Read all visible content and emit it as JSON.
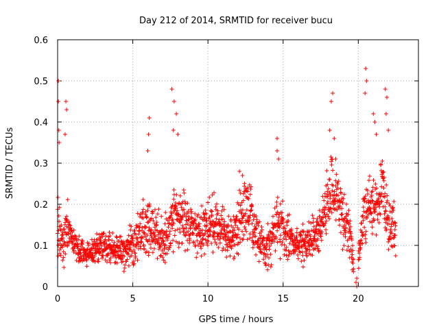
{
  "chart_data": {
    "type": "scatter",
    "title": "Day 212 of 2014, SRMTID for receiver bucu",
    "xlabel": "GPS time / hours",
    "ylabel": "SRMTID / TECUs",
    "xlim": [
      0,
      24
    ],
    "ylim": [
      0,
      0.6
    ],
    "xticks": [
      0,
      5,
      10,
      15,
      20
    ],
    "xtick_labels": [
      "0",
      "5",
      "10",
      "15",
      "20"
    ],
    "yticks": [
      0,
      0.1,
      0.2,
      0.3,
      0.4,
      0.5,
      0.6
    ],
    "ytick_labels": [
      "0",
      "0.1",
      "0.2",
      "0.3",
      "0.4",
      "0.5",
      "0.6"
    ],
    "grid": true,
    "marker": "+",
    "series": [
      {
        "name": "SRMTID",
        "color": "#ff0000",
        "envelope": {
          "x": [
            0,
            0.1,
            0.2,
            0.4,
            0.6,
            0.8,
            1.0,
            1.5,
            2.0,
            2.5,
            3.0,
            3.5,
            4.0,
            4.5,
            5.0,
            5.5,
            6.0,
            6.5,
            7.0,
            7.5,
            7.8,
            8.2,
            8.8,
            9.5,
            10.0,
            10.5,
            11.0,
            11.5,
            12.0,
            12.5,
            13.0,
            13.5,
            14.0,
            14.5,
            14.7,
            15.0,
            15.5,
            16.0,
            16.5,
            17.0,
            17.5,
            17.8,
            18.2,
            18.6,
            19.0,
            19.5,
            19.8,
            20.2,
            20.5,
            20.8,
            21.2,
            21.6,
            22.0,
            22.5
          ],
          "center": [
            0.18,
            0.15,
            0.12,
            0.1,
            0.15,
            0.14,
            0.11,
            0.08,
            0.08,
            0.09,
            0.1,
            0.1,
            0.09,
            0.08,
            0.11,
            0.13,
            0.15,
            0.13,
            0.11,
            0.14,
            0.18,
            0.16,
            0.15,
            0.13,
            0.15,
            0.16,
            0.14,
            0.12,
            0.14,
            0.2,
            0.15,
            0.1,
            0.1,
            0.14,
            0.16,
            0.13,
            0.11,
            0.1,
            0.11,
            0.12,
            0.14,
            0.16,
            0.25,
            0.22,
            0.16,
            0.12,
            0.0,
            0.13,
            0.18,
            0.2,
            0.2,
            0.24,
            0.15,
            0.13
          ],
          "spread": [
            0.1,
            0.06,
            0.04,
            0.04,
            0.05,
            0.04,
            0.03,
            0.03,
            0.02,
            0.03,
            0.03,
            0.03,
            0.03,
            0.03,
            0.04,
            0.05,
            0.06,
            0.05,
            0.05,
            0.05,
            0.07,
            0.06,
            0.05,
            0.05,
            0.05,
            0.05,
            0.05,
            0.04,
            0.05,
            0.06,
            0.06,
            0.04,
            0.05,
            0.05,
            0.05,
            0.05,
            0.04,
            0.03,
            0.04,
            0.04,
            0.05,
            0.06,
            0.08,
            0.06,
            0.06,
            0.04,
            0.005,
            0.05,
            0.07,
            0.06,
            0.06,
            0.07,
            0.05,
            0.04
          ]
        },
        "peaks": [
          {
            "x": 0.05,
            "y": 0.5
          },
          {
            "x": 0.05,
            "y": 0.45
          },
          {
            "x": 0.08,
            "y": 0.38
          },
          {
            "x": 0.1,
            "y": 0.35
          },
          {
            "x": 0.55,
            "y": 0.45
          },
          {
            "x": 0.6,
            "y": 0.43
          },
          {
            "x": 0.5,
            "y": 0.37
          },
          {
            "x": 6.1,
            "y": 0.41
          },
          {
            "x": 6.05,
            "y": 0.37
          },
          {
            "x": 6.0,
            "y": 0.33
          },
          {
            "x": 7.6,
            "y": 0.48
          },
          {
            "x": 7.75,
            "y": 0.45
          },
          {
            "x": 7.9,
            "y": 0.42
          },
          {
            "x": 7.7,
            "y": 0.38
          },
          {
            "x": 8.0,
            "y": 0.37
          },
          {
            "x": 12.1,
            "y": 0.28
          },
          {
            "x": 12.3,
            "y": 0.27
          },
          {
            "x": 14.6,
            "y": 0.36
          },
          {
            "x": 14.6,
            "y": 0.33
          },
          {
            "x": 14.7,
            "y": 0.31
          },
          {
            "x": 18.3,
            "y": 0.47
          },
          {
            "x": 18.2,
            "y": 0.45
          },
          {
            "x": 18.1,
            "y": 0.38
          },
          {
            "x": 18.4,
            "y": 0.36
          },
          {
            "x": 18.5,
            "y": 0.31
          },
          {
            "x": 19.9,
            "y": 0.02
          },
          {
            "x": 19.85,
            "y": 0.01
          },
          {
            "x": 19.9,
            "y": 0.0
          },
          {
            "x": 20.5,
            "y": 0.53
          },
          {
            "x": 20.55,
            "y": 0.5
          },
          {
            "x": 20.45,
            "y": 0.47
          },
          {
            "x": 21.0,
            "y": 0.42
          },
          {
            "x": 21.1,
            "y": 0.4
          },
          {
            "x": 21.2,
            "y": 0.37
          },
          {
            "x": 21.8,
            "y": 0.48
          },
          {
            "x": 21.9,
            "y": 0.46
          },
          {
            "x": 21.85,
            "y": 0.42
          },
          {
            "x": 22.0,
            "y": 0.38
          }
        ]
      }
    ]
  }
}
